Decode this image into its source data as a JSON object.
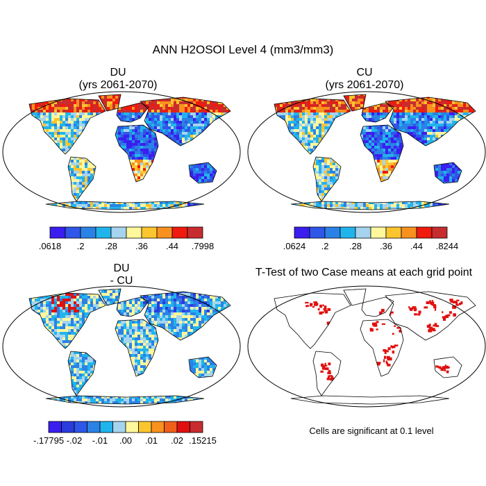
{
  "title": "ANN H2OSOI Level 4 (mm3/mm3)",
  "panels": [
    {
      "id": "du",
      "title_line1": "DU",
      "title_line2": "(yrs 2061-2070)"
    },
    {
      "id": "cu",
      "title_line1": "CU",
      "title_line2": "(yrs 2061-2070)"
    },
    {
      "id": "diff",
      "title_line1": "DU",
      "title_line2": "- CU"
    },
    {
      "id": "ttest",
      "title_line1": "T-Test of two Case means at each grid point",
      "title_line2": ""
    }
  ],
  "colorbars": {
    "du": {
      "colors": [
        "#3a1ef0",
        "#2e56e8",
        "#2b82e6",
        "#21b4ec",
        "#a6d4ee",
        "#fff79c",
        "#fbc52f",
        "#f8911e",
        "#f01a0e",
        "#c72c2f"
      ],
      "labels": [
        ".0618",
        ".2",
        ".28",
        ".36",
        ".44",
        ".7998"
      ]
    },
    "cu": {
      "colors": [
        "#3a1ef0",
        "#2e56e8",
        "#2b82e6",
        "#21b4ec",
        "#a6d4ee",
        "#fff79c",
        "#fbc52f",
        "#f8911e",
        "#f01a0e",
        "#c72c2f"
      ],
      "labels": [
        ".0624",
        ".2",
        ".28",
        ".36",
        ".44",
        ".8244"
      ]
    },
    "diff": {
      "colors": [
        "#3a1ef0",
        "#2a3cdc",
        "#2e56e8",
        "#2b82e6",
        "#21b4ec",
        "#a6d4ee",
        "#fff79c",
        "#fbc52f",
        "#f8911e",
        "#f0601a",
        "#e0100e",
        "#c72c2f"
      ],
      "labels": [
        "-.17795",
        "-.02",
        "-.01",
        ".00",
        ".01",
        ".02",
        ".15215"
      ]
    }
  },
  "significance_note": "Cells are significant at 0.1 level"
}
